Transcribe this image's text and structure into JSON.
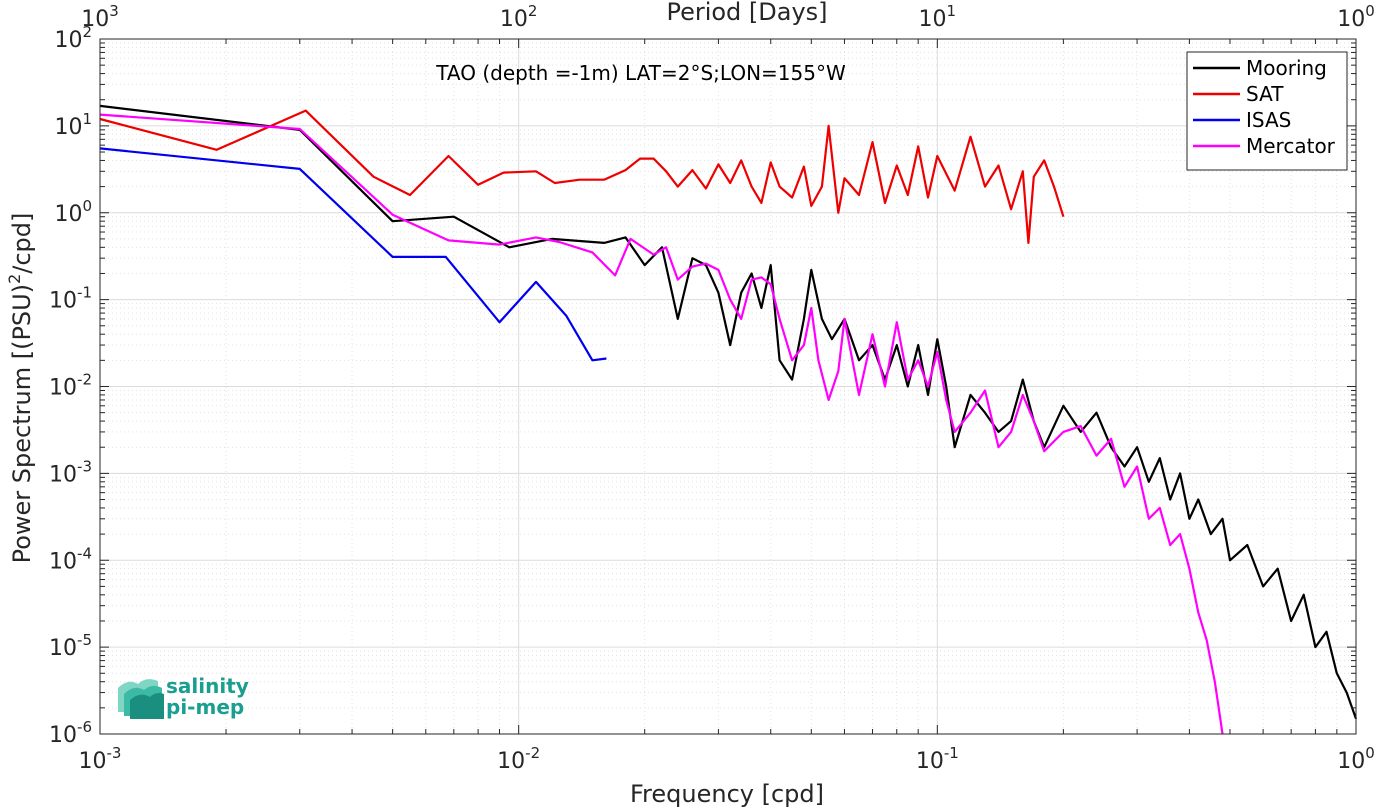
{
  "chart_data": {
    "type": "line",
    "title": "TAO (depth =-1m) LAT=2°S;LON=155°W",
    "xlabel": "Frequency [cpd]",
    "ylabel": "Power Spectrum [(PSU)^2/cpd]",
    "top_xlabel": "Period [Days]",
    "xscale": "log",
    "yscale": "log",
    "xlim": [
      0.001,
      1
    ],
    "ylim": [
      1e-06,
      100
    ],
    "grid": true,
    "legend_position": "top-right",
    "x_ticks": [
      {
        "base": "10",
        "exp": "-3"
      },
      {
        "base": "10",
        "exp": "-2"
      },
      {
        "base": "10",
        "exp": "-1"
      },
      {
        "base": "10",
        "exp": "0"
      }
    ],
    "top_ticks": [
      {
        "base": "10",
        "exp": "3"
      },
      {
        "base": "10",
        "exp": "2"
      },
      {
        "base": "10",
        "exp": "1"
      },
      {
        "base": "10",
        "exp": "0"
      }
    ],
    "y_ticks": [
      {
        "base": "10",
        "exp": "2"
      },
      {
        "base": "10",
        "exp": "1"
      },
      {
        "base": "10",
        "exp": "0"
      },
      {
        "base": "10",
        "exp": "-1"
      },
      {
        "base": "10",
        "exp": "-2"
      },
      {
        "base": "10",
        "exp": "-3"
      },
      {
        "base": "10",
        "exp": "-4"
      },
      {
        "base": "10",
        "exp": "-5"
      },
      {
        "base": "10",
        "exp": "-6"
      }
    ],
    "series": [
      {
        "name": "Mooring",
        "color": "#000000",
        "points": [
          [
            0.001,
            17
          ],
          [
            0.003,
            9
          ],
          [
            0.005,
            0.8
          ],
          [
            0.007,
            0.9
          ],
          [
            0.0095,
            0.4
          ],
          [
            0.012,
            0.5
          ],
          [
            0.016,
            0.45
          ],
          [
            0.018,
            0.52
          ],
          [
            0.02,
            0.25
          ],
          [
            0.022,
            0.4
          ],
          [
            0.024,
            0.06
          ],
          [
            0.026,
            0.3
          ],
          [
            0.028,
            0.25
          ],
          [
            0.03,
            0.12
          ],
          [
            0.032,
            0.03
          ],
          [
            0.034,
            0.12
          ],
          [
            0.036,
            0.2
          ],
          [
            0.038,
            0.08
          ],
          [
            0.04,
            0.25
          ],
          [
            0.042,
            0.02
          ],
          [
            0.045,
            0.012
          ],
          [
            0.048,
            0.06
          ],
          [
            0.05,
            0.22
          ],
          [
            0.053,
            0.06
          ],
          [
            0.056,
            0.035
          ],
          [
            0.06,
            0.06
          ],
          [
            0.065,
            0.02
          ],
          [
            0.07,
            0.03
          ],
          [
            0.075,
            0.012
          ],
          [
            0.08,
            0.03
          ],
          [
            0.085,
            0.01
          ],
          [
            0.09,
            0.03
          ],
          [
            0.095,
            0.008
          ],
          [
            0.1,
            0.035
          ],
          [
            0.105,
            0.01
          ],
          [
            0.11,
            0.002
          ],
          [
            0.12,
            0.008
          ],
          [
            0.13,
            0.005
          ],
          [
            0.14,
            0.003
          ],
          [
            0.15,
            0.004
          ],
          [
            0.16,
            0.012
          ],
          [
            0.17,
            0.004
          ],
          [
            0.18,
            0.002
          ],
          [
            0.2,
            0.006
          ],
          [
            0.22,
            0.003
          ],
          [
            0.24,
            0.005
          ],
          [
            0.26,
            0.002
          ],
          [
            0.28,
            0.0012
          ],
          [
            0.3,
            0.002
          ],
          [
            0.32,
            0.0008
          ],
          [
            0.34,
            0.0015
          ],
          [
            0.36,
            0.0005
          ],
          [
            0.38,
            0.001
          ],
          [
            0.4,
            0.0003
          ],
          [
            0.42,
            0.0005
          ],
          [
            0.45,
            0.0002
          ],
          [
            0.48,
            0.0003
          ],
          [
            0.5,
            0.0001
          ],
          [
            0.55,
            0.00015
          ],
          [
            0.6,
            5e-05
          ],
          [
            0.65,
            8e-05
          ],
          [
            0.7,
            2e-05
          ],
          [
            0.75,
            4e-05
          ],
          [
            0.8,
            1e-05
          ],
          [
            0.85,
            1.5e-05
          ],
          [
            0.9,
            5e-06
          ],
          [
            0.95,
            3e-06
          ],
          [
            1.0,
            1.5e-06
          ]
        ]
      },
      {
        "name": "SAT",
        "color": "#ee0000",
        "points": [
          [
            0.001,
            12
          ],
          [
            0.0019,
            5.3
          ],
          [
            0.0031,
            15
          ],
          [
            0.0045,
            2.6
          ],
          [
            0.0055,
            1.6
          ],
          [
            0.0068,
            4.5
          ],
          [
            0.008,
            2.1
          ],
          [
            0.0092,
            2.9
          ],
          [
            0.011,
            3.0
          ],
          [
            0.0122,
            2.2
          ],
          [
            0.014,
            2.4
          ],
          [
            0.016,
            2.4
          ],
          [
            0.018,
            3.1
          ],
          [
            0.0195,
            4.2
          ],
          [
            0.021,
            4.2
          ],
          [
            0.0225,
            3.0
          ],
          [
            0.024,
            2.0
          ],
          [
            0.026,
            3.1
          ],
          [
            0.028,
            1.9
          ],
          [
            0.03,
            3.6
          ],
          [
            0.032,
            2.2
          ],
          [
            0.034,
            4.0
          ],
          [
            0.036,
            2.0
          ],
          [
            0.038,
            1.3
          ],
          [
            0.04,
            3.8
          ],
          [
            0.042,
            2.0
          ],
          [
            0.045,
            1.5
          ],
          [
            0.048,
            3.4
          ],
          [
            0.05,
            1.2
          ],
          [
            0.053,
            2.0
          ],
          [
            0.055,
            10
          ],
          [
            0.058,
            1.0
          ],
          [
            0.06,
            2.5
          ],
          [
            0.065,
            1.6
          ],
          [
            0.07,
            6.5
          ],
          [
            0.075,
            1.3
          ],
          [
            0.08,
            3.5
          ],
          [
            0.085,
            1.6
          ],
          [
            0.09,
            5.8
          ],
          [
            0.095,
            1.5
          ],
          [
            0.1,
            4.5
          ],
          [
            0.11,
            1.8
          ],
          [
            0.12,
            7.5
          ],
          [
            0.13,
            2.0
          ],
          [
            0.14,
            3.5
          ],
          [
            0.15,
            1.1
          ],
          [
            0.16,
            3.0
          ],
          [
            0.165,
            0.45
          ],
          [
            0.17,
            2.6
          ],
          [
            0.18,
            4.0
          ],
          [
            0.19,
            2.0
          ],
          [
            0.2,
            0.9
          ]
        ]
      },
      {
        "name": "ISAS",
        "color": "#0000ee",
        "points": [
          [
            0.001,
            5.5
          ],
          [
            0.003,
            3.2
          ],
          [
            0.005,
            0.31
          ],
          [
            0.0067,
            0.31
          ],
          [
            0.009,
            0.055
          ],
          [
            0.011,
            0.16
          ],
          [
            0.013,
            0.065
          ],
          [
            0.015,
            0.02
          ],
          [
            0.0162,
            0.021
          ]
        ]
      },
      {
        "name": "Mercator",
        "color": "#ff00ff",
        "points": [
          [
            0.001,
            13.5
          ],
          [
            0.003,
            9.2
          ],
          [
            0.005,
            0.95
          ],
          [
            0.0068,
            0.48
          ],
          [
            0.009,
            0.43
          ],
          [
            0.011,
            0.52
          ],
          [
            0.0125,
            0.46
          ],
          [
            0.015,
            0.35
          ],
          [
            0.017,
            0.19
          ],
          [
            0.0185,
            0.5
          ],
          [
            0.021,
            0.33
          ],
          [
            0.0225,
            0.4
          ],
          [
            0.024,
            0.17
          ],
          [
            0.026,
            0.24
          ],
          [
            0.028,
            0.26
          ],
          [
            0.03,
            0.22
          ],
          [
            0.032,
            0.1
          ],
          [
            0.034,
            0.06
          ],
          [
            0.036,
            0.17
          ],
          [
            0.038,
            0.18
          ],
          [
            0.04,
            0.15
          ],
          [
            0.042,
            0.06
          ],
          [
            0.045,
            0.02
          ],
          [
            0.048,
            0.03
          ],
          [
            0.05,
            0.08
          ],
          [
            0.052,
            0.02
          ],
          [
            0.055,
            0.007
          ],
          [
            0.058,
            0.015
          ],
          [
            0.06,
            0.06
          ],
          [
            0.065,
            0.008
          ],
          [
            0.07,
            0.04
          ],
          [
            0.075,
            0.01
          ],
          [
            0.08,
            0.055
          ],
          [
            0.085,
            0.012
          ],
          [
            0.09,
            0.02
          ],
          [
            0.095,
            0.01
          ],
          [
            0.1,
            0.025
          ],
          [
            0.105,
            0.007
          ],
          [
            0.11,
            0.003
          ],
          [
            0.12,
            0.005
          ],
          [
            0.13,
            0.009
          ],
          [
            0.14,
            0.002
          ],
          [
            0.15,
            0.003
          ],
          [
            0.16,
            0.008
          ],
          [
            0.17,
            0.004
          ],
          [
            0.18,
            0.0018
          ],
          [
            0.2,
            0.003
          ],
          [
            0.22,
            0.0035
          ],
          [
            0.24,
            0.0016
          ],
          [
            0.26,
            0.0025
          ],
          [
            0.28,
            0.0007
          ],
          [
            0.3,
            0.0012
          ],
          [
            0.32,
            0.0003
          ],
          [
            0.34,
            0.0004
          ],
          [
            0.36,
            0.00015
          ],
          [
            0.38,
            0.0002
          ],
          [
            0.4,
            8e-05
          ],
          [
            0.42,
            2.5e-05
          ],
          [
            0.44,
            1.2e-05
          ],
          [
            0.46,
            4e-06
          ],
          [
            0.47,
            2e-06
          ],
          [
            0.48,
            1e-06
          ]
        ]
      }
    ]
  },
  "logo": {
    "line1": "salinity",
    "line2": "pi-mep"
  },
  "colors": {
    "logo_teal": "#1a9e8f"
  }
}
